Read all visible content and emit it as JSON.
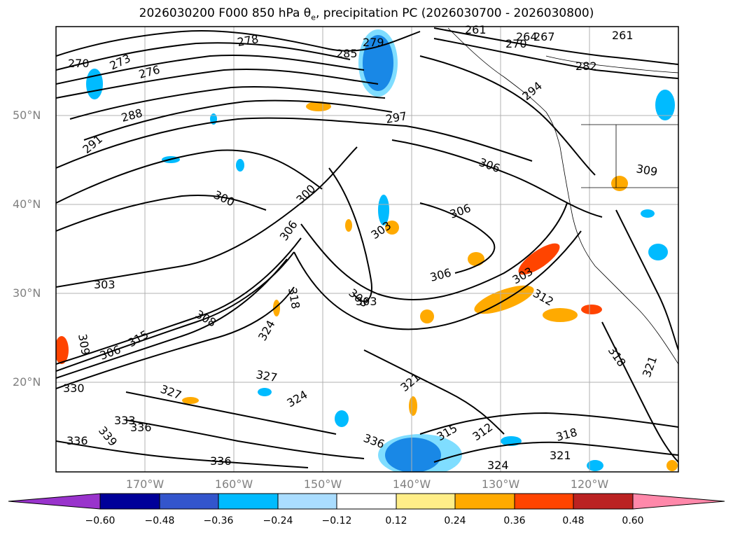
{
  "title": {
    "prefix": "2026030200 F000 850 hPa θ",
    "sub": "e",
    "suffix": ", precipitation PC (2026030700 - 2026030800)"
  },
  "map_data": {
    "lat_labels": [
      "50°N",
      "40°N",
      "30°N",
      "20°N"
    ],
    "lon_labels": [
      "170°W",
      "160°W",
      "150°W",
      "140°W",
      "130°W",
      "120°W"
    ],
    "lat_values": [
      50,
      40,
      30,
      20
    ],
    "lon_values": [
      -170,
      -160,
      -150,
      -140,
      -130,
      -120
    ],
    "contour_labels": [
      "270",
      "273",
      "276",
      "278",
      "279",
      "285",
      "261",
      "264",
      "267",
      "270",
      "261",
      "282",
      "294",
      "288",
      "291",
      "297",
      "300",
      "300",
      "306",
      "306",
      "309",
      "306",
      "303",
      "303",
      "306",
      "303",
      "303",
      "303",
      "308",
      "312",
      "315",
      "318",
      "324",
      "327",
      "327",
      "330",
      "333",
      "336",
      "339",
      "336",
      "324",
      "321",
      "315",
      "312",
      "318",
      "321",
      "318",
      "321",
      "324",
      "336",
      "336",
      "306",
      "309"
    ]
  },
  "colorbar": {
    "ticks": [
      "−0.60",
      "−0.48",
      "−0.36",
      "−0.24",
      "−0.12",
      "0.12",
      "0.24",
      "0.36",
      "0.48",
      "0.60"
    ],
    "colors": {
      "under": "#9933cc",
      "c1": "#000099",
      "c2": "#3355cc",
      "c3": "#00bbff",
      "c4": "#aaddff",
      "c5": "#ffffff",
      "c6": "#ffee88",
      "c7": "#ffaa00",
      "c8": "#ff4400",
      "c9": "#bb2222",
      "over": "#ff88aa"
    }
  }
}
